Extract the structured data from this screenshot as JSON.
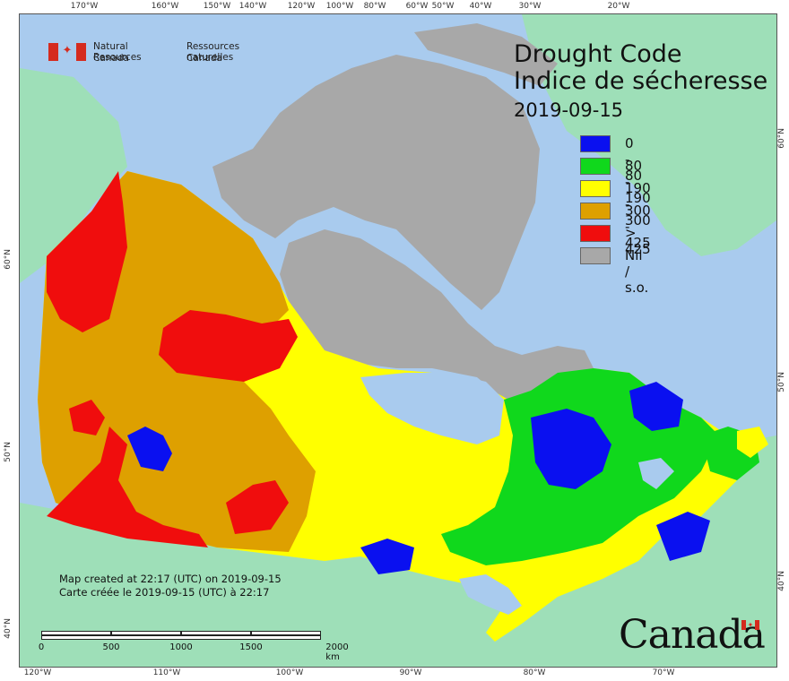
{
  "graticule": {
    "top_longitudes": [
      "170°W",
      "160°W",
      "150°W",
      "140°W",
      "120°W",
      "100°W",
      "80°W",
      "60°W",
      "50°W",
      "40°W",
      "30°W",
      "20°W"
    ],
    "bottom_longitudes": [
      "120°W",
      "110°W",
      "100°W",
      "90°W",
      "80°W",
      "70°W"
    ],
    "left_latitudes": [
      "60°N",
      "50°N",
      "40°N"
    ],
    "right_latitudes": [
      "60°N",
      "50°N",
      "40°N"
    ]
  },
  "header": {
    "agency_en_1": "Natural Resources",
    "agency_en_2": "Canada",
    "agency_fr_1": "Ressources naturelles",
    "agency_fr_2": "Canada"
  },
  "title": {
    "line1": "Drought Code",
    "line2": "Indice de sécheresse",
    "date": "2019-09-15"
  },
  "legend": [
    {
      "label": "0 - 80",
      "color": "#0a10f0"
    },
    {
      "label": "80 - 190",
      "color": "#10d81c"
    },
    {
      "label": "190 - 300",
      "color": "#ffff00"
    },
    {
      "label": "300 - 425",
      "color": "#dea000"
    },
    {
      "label": "> 425",
      "color": "#f00d0d"
    },
    {
      "label": "Nil / s.o.",
      "color": "#a8a8a8"
    }
  ],
  "colors": {
    "water": "#a9cbee",
    "foreign_land": "#9edfb8",
    "no_data": "#a8a8a8",
    "flag_red": "#d52b1e"
  },
  "footer": {
    "created_en": "Map created at 22:17 (UTC) on 2019-09-15",
    "created_fr": "Carte créée le 2019-09-15 (UTC) à 22:17"
  },
  "scale": {
    "labels": [
      "0",
      "500",
      "1000",
      "1500",
      "2000 km"
    ]
  },
  "wordmark": "Canada"
}
